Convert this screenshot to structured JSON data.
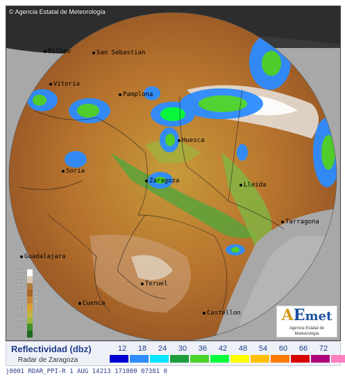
{
  "header": {
    "copyright_text": "Agencia Estatal de Meteorología"
  },
  "map": {
    "cities": [
      {
        "name": "Bilbao"
      },
      {
        "name": "San Sebastian"
      },
      {
        "name": "Vitoria"
      },
      {
        "name": "Pamplona"
      },
      {
        "name": "Huesca"
      },
      {
        "name": "Soria"
      },
      {
        "name": "Zaragoza"
      },
      {
        "name": "Lleida"
      },
      {
        "name": "Tarragona"
      },
      {
        "name": "Guadalajara"
      },
      {
        "name": "Teruel"
      },
      {
        "name": "Cuenca"
      },
      {
        "name": "Castellon"
      }
    ],
    "orography": {
      "title": "Orografía (m)",
      "levels": [
        ">2500",
        "2000",
        "1500",
        "1250",
        "1000",
        "800",
        "600",
        "400",
        "200",
        "0"
      ],
      "colors": [
        "#ffffff",
        "#d9c7b0",
        "#b07a3a",
        "#a8642a",
        "#c68436",
        "#d8a032",
        "#c2b441",
        "#9db53d",
        "#3f8f2d",
        "#1e6b20"
      ]
    },
    "logo": {
      "text": "AEmet",
      "subtitle": "Agencia Estatal de Meteorología"
    }
  },
  "legend": {
    "title": "Reflectividad (dbz)",
    "subtitle": "Radar de Zaragoza",
    "ticks": [
      "12",
      "18",
      "24",
      "30",
      "36",
      "42",
      "48",
      "54",
      "60",
      "66",
      "72"
    ],
    "colors": [
      "#0000d0",
      "#2d8cff",
      "#00e6ff",
      "#1f9e3c",
      "#4bd22c",
      "#00ff3c",
      "#ffff00",
      "#ffbf00",
      "#ff7a00",
      "#d80000",
      "#b0007a",
      "#ff80c0"
    ]
  },
  "status_line": "j0001 RDAR_PPI-R   1 AUG 14213 171000 07381 0 "
}
